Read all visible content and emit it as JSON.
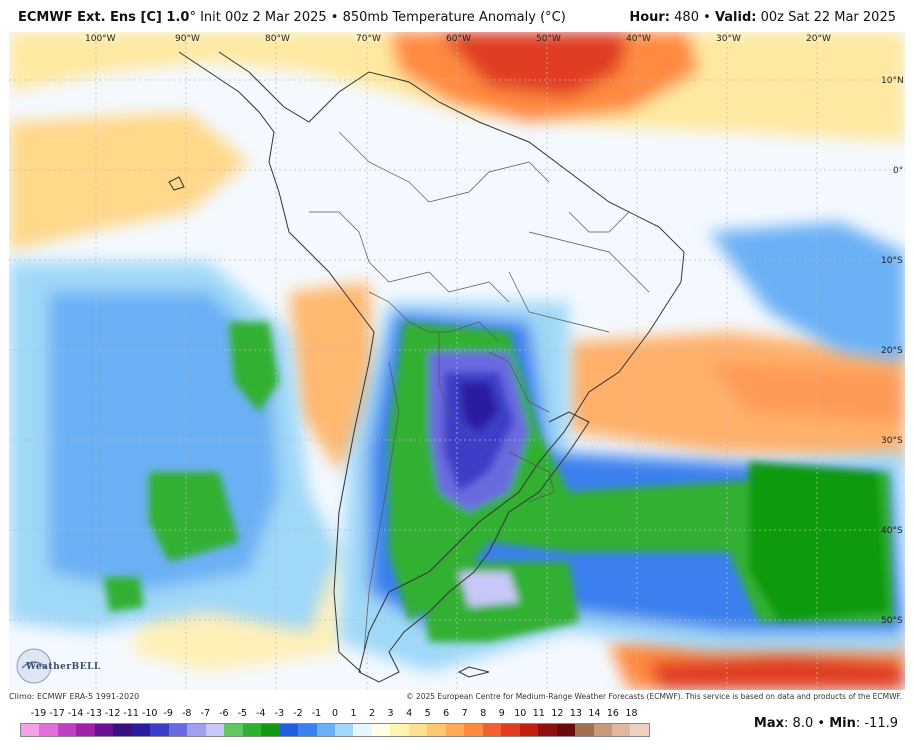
{
  "header": {
    "model": "ECMWF Ext. Ens [C] 1.0",
    "degree_mark": "°",
    "init": "Init 00z 2 Mar 2025",
    "bullet": "•",
    "field": "850mb Temperature Anomaly (°C)",
    "hour_label": "Hour:",
    "hour_value": "480",
    "valid_label": "Valid:",
    "valid_value": "00z Sat 22 Mar 2025"
  },
  "map": {
    "longitudes": [
      "100°W",
      "90°W",
      "80°W",
      "70°W",
      "60°W",
      "50°W",
      "40°W",
      "30°W",
      "20°W"
    ],
    "latitudes": [
      "10°N",
      "0°",
      "10°S",
      "20°S",
      "30°S",
      "40°S",
      "50°S"
    ],
    "logo_text": "WeatherBELL"
  },
  "footer": {
    "climo": "Climo: ECMWF ERA-5 1991-2020",
    "copyright": "© 2025 European Centre for Medium-Range Weather Forecasts (ECMWF). This service is based on data and products of the ECMWF."
  },
  "legend": {
    "ticks": [
      "-19",
      "-17",
      "-14",
      "-13",
      "-12",
      "-11",
      "-10",
      "-9",
      "-8",
      "-7",
      "-6",
      "-5",
      "-4",
      "-3",
      "-2",
      "-1",
      "0",
      "1",
      "2",
      "3",
      "4",
      "5",
      "6",
      "7",
      "8",
      "9",
      "10",
      "11",
      "12",
      "13",
      "14",
      "16",
      "18"
    ],
    "colors": [
      "#f5a0e8",
      "#e070d8",
      "#c040c0",
      "#a020a8",
      "#6a1090",
      "#3a1080",
      "#2a1aa0",
      "#3c3cc8",
      "#6a6ae0",
      "#a0a0f0",
      "#c8c8f8",
      "#60c860",
      "#30b030",
      "#109a10",
      "#2060e0",
      "#3a80ee",
      "#6ab0f5",
      "#a0d8f8",
      "#e6f8ff",
      "#ffffe6",
      "#fff5b0",
      "#ffe090",
      "#ffc870",
      "#ffaa55",
      "#ff8a40",
      "#f06030",
      "#e03c20",
      "#c02010",
      "#901010",
      "#6a0a0a",
      "#a07050",
      "#c89878",
      "#e0b8a0",
      "#f0d0c0"
    ]
  },
  "maxmin": {
    "max_label": "Max",
    "max_value": "8.0",
    "min_label": "Min",
    "min_value": "-11.9",
    "separator": "•"
  }
}
